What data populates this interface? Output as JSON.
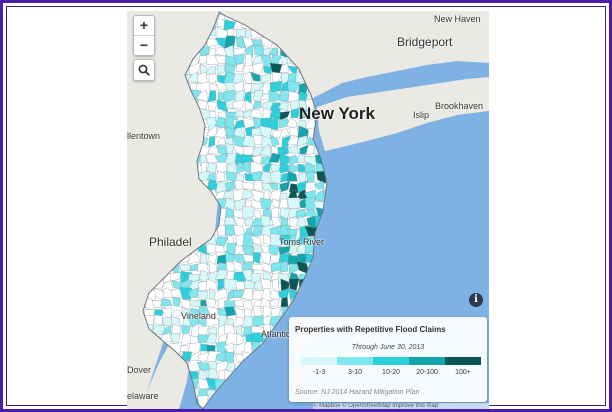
{
  "map": {
    "places": [
      {
        "name": "New Haven",
        "size": "sm"
      },
      {
        "name": "Bridgeport",
        "size": "md"
      },
      {
        "name": "New York",
        "size": "lg"
      },
      {
        "name": "Islip",
        "size": "sm"
      },
      {
        "name": "Brookhaven",
        "size": "sm"
      },
      {
        "name": "llentown",
        "size": "sm"
      },
      {
        "name": "Philadel",
        "size": "md"
      },
      {
        "name": "Toms River",
        "size": "sm"
      },
      {
        "name": "Vineland",
        "size": "sm"
      },
      {
        "name": "Atlantic City",
        "size": "sm"
      },
      {
        "name": "Dover",
        "size": "sm"
      },
      {
        "name": "elaware",
        "size": "sm"
      }
    ],
    "colors": {
      "water": "#7fb2e4",
      "land": "#eae9e3",
      "nj_base": "#ffffff",
      "border": "#7d8590"
    }
  },
  "controls": {
    "zoom_in": "+",
    "zoom_out": "−",
    "info": "i"
  },
  "legend": {
    "title": "Properties with Repetitive Flood Claims",
    "subtitle": "Through June 30, 2013",
    "bins": [
      {
        "label": "-1-3",
        "color": "#d6f8f8"
      },
      {
        "label": "3-10",
        "color": "#7ee6ec"
      },
      {
        "label": "10-20",
        "color": "#2bd0dc"
      },
      {
        "label": "20-100",
        "color": "#14a4ac"
      },
      {
        "label": "100+",
        "color": "#0c5656"
      }
    ],
    "source": "Source: NJ 2014 Hazard Mitigation Plan"
  },
  "attribution": "© Mapbox © OpenStreetMap Improve this map"
}
